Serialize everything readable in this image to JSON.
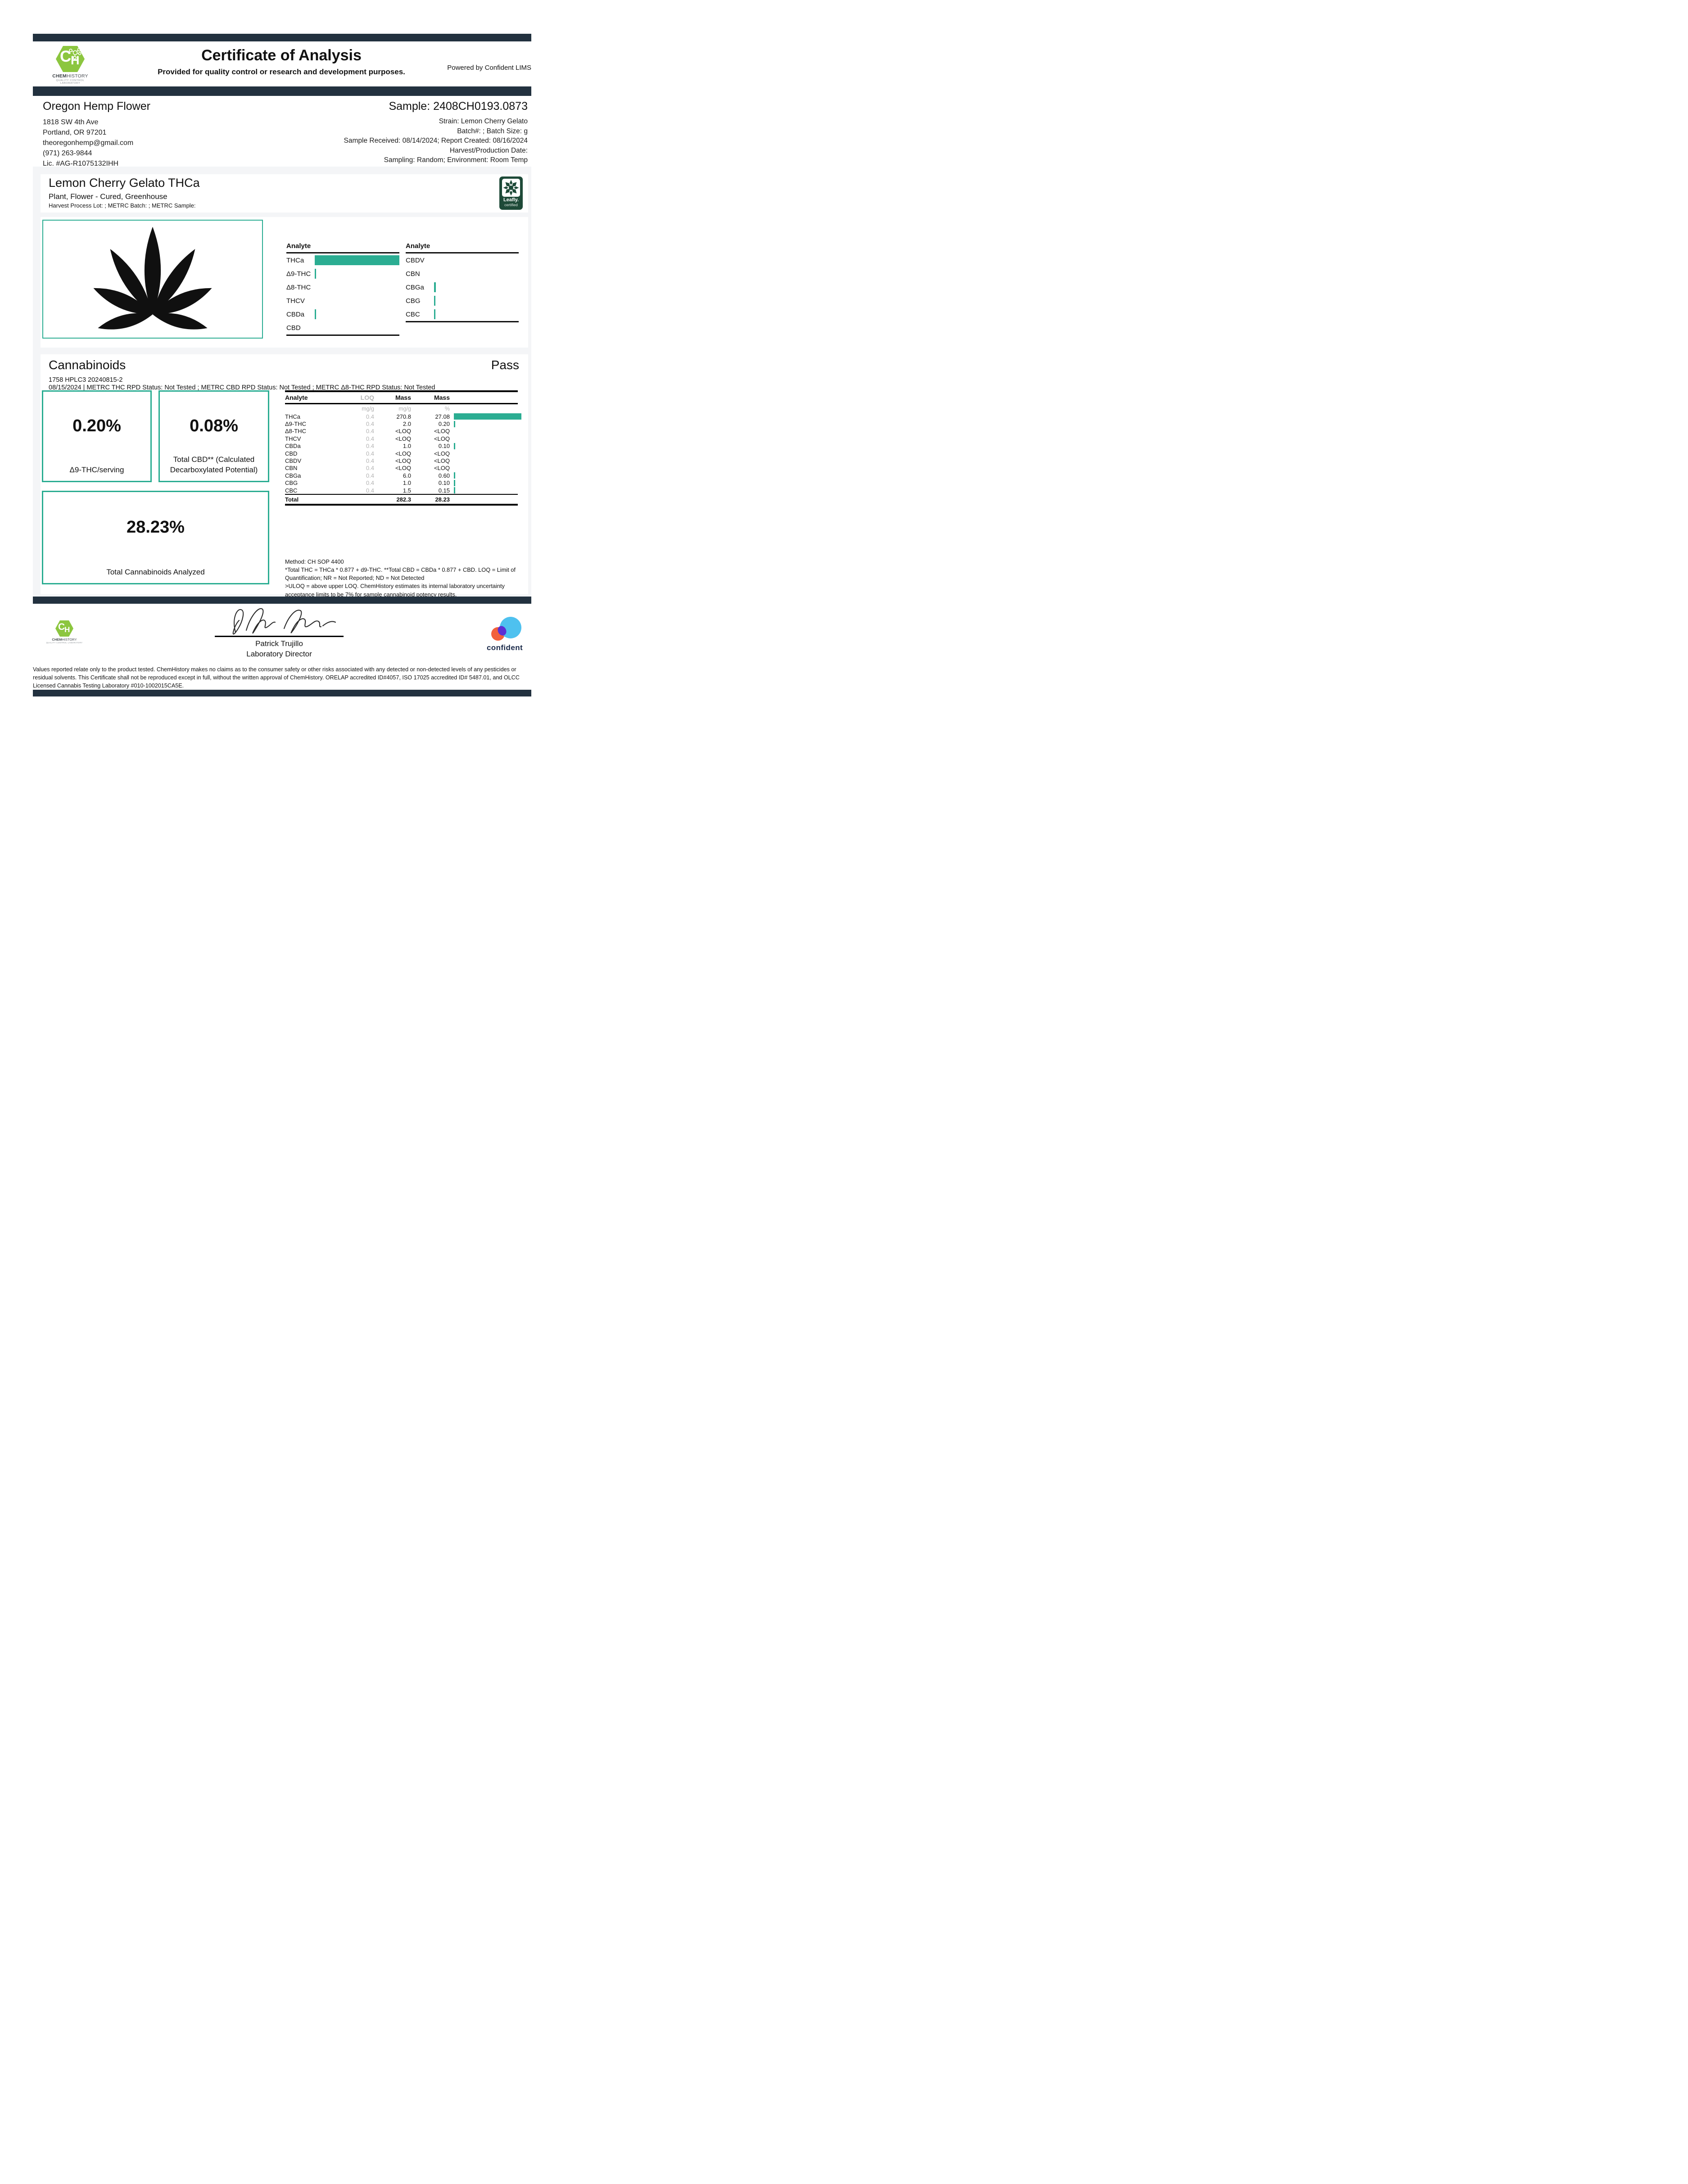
{
  "colors": {
    "accent_teal": "#2BAD92",
    "navy": "#22313F",
    "chemhistory_green": "#8CC63F",
    "leafly_green": "#1E4A38",
    "confident_blue": "#4EC1EF",
    "confident_orange": "#F2603C",
    "confident_purple": "#5B2FD3",
    "confident_navy": "#1B2A4A"
  },
  "header": {
    "title": "Certificate of Analysis",
    "subtitle": "Provided for quality control or research and development purposes.",
    "powered_by": "Powered by Confident LIMS",
    "logo": {
      "monogram_c": "C",
      "monogram_h": "H",
      "brand_bold": "CHEM",
      "brand_light": "HISTORY",
      "tagline": "QUALITY CONTROL LABORATORY"
    }
  },
  "client": {
    "name": "Oregon Hemp Flower",
    "address1": "1818 SW 4th Ave",
    "address2": "Portland, OR 97201",
    "email": "theoregonhemp@gmail.com",
    "phone": "(971) 263-9844",
    "license": "Lic. #AG-R1075132IHH"
  },
  "sample": {
    "id": "Sample: 2408CH0193.0873",
    "strain": "Strain: Lemon Cherry Gelato",
    "batch": "Batch#: ; Batch Size:  g",
    "received": "Sample Received: 08/14/2024; Report Created: 08/16/2024",
    "harvest": "Harvest/Production Date:",
    "sampling": "Sampling: Random; Environment: Room Temp"
  },
  "product": {
    "name": "Lemon Cherry Gelato THCa",
    "type": "Plant, Flower - Cured, Greenhouse",
    "meta": "Harvest Process Lot: ; METRC Batch: ; METRC Sample:",
    "leafly_brand": "Leafly.",
    "leafly_label": "certified"
  },
  "section": {
    "title": "Cannabinoids",
    "status": "Pass",
    "run_id": "1758 HPLC3 20240815-2",
    "metrc_line": "08/15/2024 | METRC THC RPD Status: Not Tested ; METRC CBD RPD Status: Not Tested ; METRC Δ8-THC RPD Status: Not Tested"
  },
  "panels": [
    {
      "value": "0.20%",
      "label": "Δ9-THC/serving"
    },
    {
      "value": "0.08%",
      "label": "Total CBD** (Calculated Decarboxylated Potential)"
    },
    {
      "value": "28.23%",
      "label": "Total Cannabinoids Analyzed"
    }
  ],
  "method": {
    "line1": "Method: CH SOP 4400",
    "line2": "*Total THC = THCa * 0.877 + d9-THC. **Total CBD = CBDa * 0.877 + CBD. LOQ = Limit of Quantification; NR = Not Reported; ND = Not Detected",
    "line3": ">ULOQ = above upper LOQ. ChemHistory estimates its internal laboratory uncertainty acceptance limits to be 7% for sample cannabinoid potency results."
  },
  "signature": {
    "name": "Patrick Trujillo",
    "title": "Laboratory Director"
  },
  "confident_label": "confident",
  "footer": "Values reported relate only to the product tested. ChemHistory makes no claims as to the consumer safety or other risks associated with any detected or non-detected levels of any pesticides or residual solvents. This Certificate shall not be reproduced except in full, without the written approval of ChemHistory.  ORELAP accredited ID#4057, ISO 17025 accredited ID# 5487.01, and OLCC Licensed Cannabis Testing Laboratory #010-1002015CA5E.",
  "chart_data": [
    {
      "type": "bar",
      "title": "Analyte overview - left column",
      "header": "Analyte",
      "categories": [
        "THCa",
        "Δ9-THC",
        "Δ8-THC",
        "THCV",
        "CBDa",
        "CBD"
      ],
      "values": [
        27.08,
        0.2,
        0,
        0,
        0.1,
        0
      ],
      "unit": "%",
      "xlim": [
        0,
        27.08
      ],
      "bar_color": "#2BAD92"
    },
    {
      "type": "bar",
      "title": "Analyte overview - right column",
      "header": "Analyte",
      "categories": [
        "CBDV",
        "CBN",
        "CBGa",
        "CBG",
        "CBC"
      ],
      "values": [
        0,
        0,
        0.6,
        0.1,
        0.15
      ],
      "unit": "%",
      "xlim": [
        0,
        27.08
      ],
      "bar_color": "#2BAD92"
    },
    {
      "type": "table",
      "title": "Cannabinoids results",
      "headers": [
        "Analyte",
        "LOQ",
        "Mass",
        "Mass"
      ],
      "units": [
        "mg/g",
        "mg/g",
        "%"
      ],
      "rows": [
        {
          "analyte": "THCa",
          "loq": "0.4",
          "mass": "270.8",
          "pct": "27.08",
          "pct_num": 27.08
        },
        {
          "analyte": "Δ9-THC",
          "loq": "0.4",
          "mass": "2.0",
          "pct": "0.20",
          "pct_num": 0.2
        },
        {
          "analyte": "Δ8-THC",
          "loq": "0.4",
          "mass": "<LOQ",
          "pct": "<LOQ",
          "pct_num": 0
        },
        {
          "analyte": "THCV",
          "loq": "0.4",
          "mass": "<LOQ",
          "pct": "<LOQ",
          "pct_num": 0
        },
        {
          "analyte": "CBDa",
          "loq": "0.4",
          "mass": "1.0",
          "pct": "0.10",
          "pct_num": 0.1
        },
        {
          "analyte": "CBD",
          "loq": "0.4",
          "mass": "<LOQ",
          "pct": "<LOQ",
          "pct_num": 0
        },
        {
          "analyte": "CBDV",
          "loq": "0.4",
          "mass": "<LOQ",
          "pct": "<LOQ",
          "pct_num": 0
        },
        {
          "analyte": "CBN",
          "loq": "0.4",
          "mass": "<LOQ",
          "pct": "<LOQ",
          "pct_num": 0
        },
        {
          "analyte": "CBGa",
          "loq": "0.4",
          "mass": "6.0",
          "pct": "0.60",
          "pct_num": 0.6
        },
        {
          "analyte": "CBG",
          "loq": "0.4",
          "mass": "1.0",
          "pct": "0.10",
          "pct_num": 0.1
        },
        {
          "analyte": "CBC",
          "loq": "0.4",
          "mass": "1.5",
          "pct": "0.15",
          "pct_num": 0.15
        }
      ],
      "total": {
        "label": "Total",
        "mass": "282.3",
        "pct": "28.23"
      }
    }
  ]
}
